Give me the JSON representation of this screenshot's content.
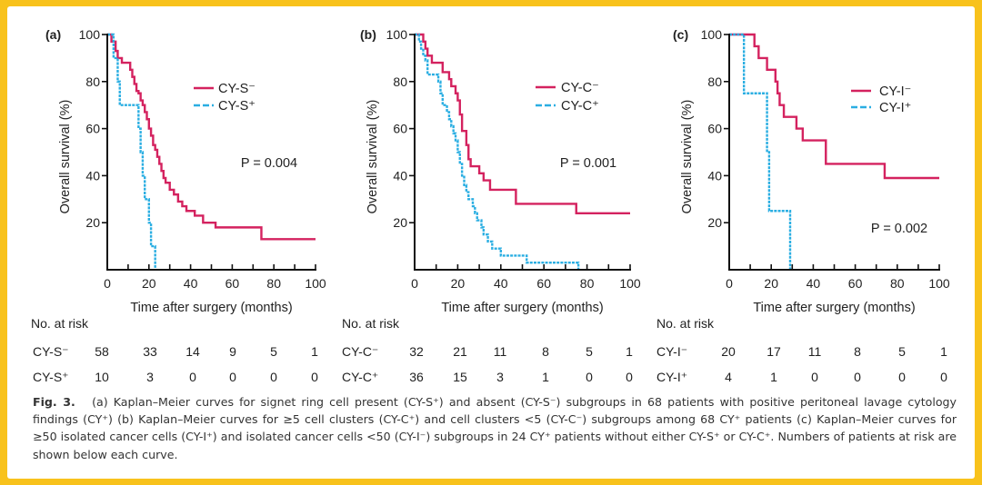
{
  "frame_color": "#f8c21c",
  "caption": {
    "label": "Fig. 3.",
    "text": "(a) Kaplan–Meier curves for signet ring cell present (CY-S⁺) and absent (CY-S⁻) subgroups in 68 patients with positive peritoneal lavage cytology findings (CY⁺) (b) Kaplan–Meier curves for ≥5 cell clusters (CY-C⁺) and cell clusters <5 (CY-C⁻) subgroups among 68 CY⁺ patients (c) Kaplan–Meier curves for ≥50 isolated cancer cells (CY-I⁺) and isolated cancer cells <50 (CY-I⁻) subgroups in 24 CY⁺ patients without either CY-S⁺ or CY-C⁺. Numbers of patients at risk are shown below each curve."
  },
  "chart_data": [
    {
      "type": "line",
      "step": true,
      "panel_label": "(a)",
      "xlabel": "Time after surgery (months)",
      "ylabel": "Overall survival (%)",
      "xlim": [
        0,
        100
      ],
      "ylim": [
        0,
        100
      ],
      "xticks": [
        0,
        20,
        40,
        60,
        80,
        100
      ],
      "yticks": [
        20,
        40,
        60,
        80,
        100
      ],
      "legend_position": "top-right",
      "annotation": "P = 0.004",
      "series": [
        {
          "name": "CY-S⁻",
          "color": "#d4225f",
          "style": "solid",
          "x": [
            0,
            2,
            4,
            5,
            7,
            11,
            12,
            13,
            14,
            15,
            16,
            17,
            18,
            19,
            20,
            21,
            22,
            23,
            24,
            25,
            26,
            27,
            28,
            30,
            32,
            34,
            36,
            38,
            42,
            46,
            52,
            74,
            100
          ],
          "y": [
            100,
            97,
            93,
            90,
            88,
            85,
            82,
            79,
            76,
            75,
            72,
            70,
            67,
            64,
            60,
            57,
            53,
            51,
            48,
            45,
            42,
            39,
            37,
            34,
            32,
            29,
            27,
            25,
            23,
            20,
            18,
            13,
            13
          ]
        },
        {
          "name": "CY-S⁺",
          "color": "#2aaee2",
          "style": "dashed",
          "x": [
            0,
            3,
            5,
            6,
            15,
            16,
            17,
            18,
            20,
            21,
            23
          ],
          "y": [
            100,
            90,
            80,
            70,
            60,
            50,
            40,
            30,
            20,
            10,
            0
          ]
        }
      ],
      "at_risk": {
        "title": "No. at risk",
        "rows": [
          {
            "label": "CY-S⁻",
            "values": [
              58,
              33,
              14,
              9,
              5,
              1
            ]
          },
          {
            "label": "CY-S⁺",
            "values": [
              10,
              3,
              0,
              0,
              0,
              0
            ]
          }
        ]
      }
    },
    {
      "type": "line",
      "step": true,
      "panel_label": "(b)",
      "xlabel": "Time after surgery (months)",
      "ylabel": "Overall survival (%)",
      "xlim": [
        0,
        100
      ],
      "ylim": [
        0,
        100
      ],
      "xticks": [
        0,
        20,
        40,
        60,
        80,
        100
      ],
      "yticks": [
        20,
        40,
        60,
        80,
        100
      ],
      "legend_position": "top-right",
      "annotation": "P = 0.001",
      "series": [
        {
          "name": "CY-C⁻",
          "color": "#d4225f",
          "style": "solid",
          "x": [
            0,
            4,
            5,
            6,
            8,
            13,
            16,
            17,
            19,
            20,
            21,
            22,
            24,
            25,
            26,
            30,
            32,
            35,
            47,
            75,
            100
          ],
          "y": [
            100,
            97,
            94,
            91,
            88,
            84,
            81,
            78,
            75,
            72,
            66,
            59,
            53,
            47,
            44,
            41,
            38,
            34,
            28,
            24,
            24
          ]
        },
        {
          "name": "CY-C⁺",
          "color": "#2aaee2",
          "style": "dashed",
          "x": [
            0,
            2,
            3,
            4,
            5,
            6,
            11,
            12,
            13,
            15,
            16,
            17,
            18,
            19,
            20,
            21,
            22,
            23,
            24,
            25,
            27,
            28,
            29,
            31,
            32,
            34,
            36,
            40,
            52,
            75,
            76
          ],
          "y": [
            100,
            97,
            94,
            91,
            89,
            83,
            80,
            75,
            70,
            67,
            64,
            61,
            58,
            55,
            50,
            45,
            40,
            36,
            33,
            30,
            27,
            24,
            21,
            18,
            15,
            12,
            9,
            6,
            3,
            3,
            0
          ]
        }
      ],
      "at_risk": {
        "title": "No. at risk",
        "rows": [
          {
            "label": "CY-C⁻",
            "values": [
              32,
              21,
              11,
              8,
              5,
              1
            ]
          },
          {
            "label": "CY-C⁺",
            "values": [
              36,
              15,
              3,
              1,
              0,
              0
            ]
          }
        ]
      }
    },
    {
      "type": "line",
      "step": true,
      "panel_label": "(c)",
      "xlabel": "Time after surgery (months)",
      "ylabel": "Overall survival (%)",
      "xlim": [
        0,
        100
      ],
      "ylim": [
        0,
        100
      ],
      "xticks": [
        0,
        20,
        40,
        60,
        80,
        100
      ],
      "yticks": [
        20,
        40,
        60,
        80,
        100
      ],
      "legend_position": "top-right",
      "annotation": "P = 0.002",
      "series": [
        {
          "name": "CY-I⁻",
          "color": "#d4225f",
          "style": "solid",
          "x": [
            0,
            12,
            14,
            18,
            22,
            23,
            24,
            26,
            32,
            35,
            46,
            74,
            100
          ],
          "y": [
            100,
            95,
            90,
            85,
            80,
            75,
            70,
            65,
            60,
            55,
            45,
            39,
            39
          ]
        },
        {
          "name": "CY-I⁺",
          "color": "#2aaee2",
          "style": "dashed",
          "x": [
            0,
            7,
            18,
            19,
            29
          ],
          "y": [
            100,
            75,
            50,
            25,
            0
          ]
        }
      ],
      "at_risk": {
        "title": "No. at risk",
        "rows": [
          {
            "label": "CY-I⁻",
            "values": [
              20,
              17,
              11,
              8,
              5,
              1
            ]
          },
          {
            "label": "CY-I⁺",
            "values": [
              4,
              1,
              0,
              0,
              0,
              0
            ]
          }
        ]
      }
    }
  ]
}
